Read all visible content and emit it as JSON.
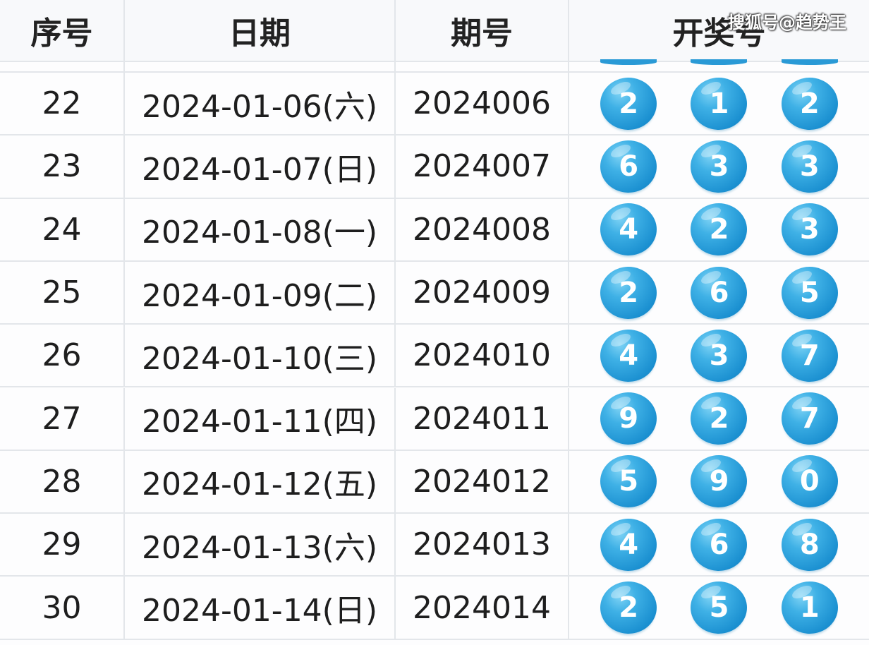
{
  "watermark": "搜狐号@趋势王",
  "headers": {
    "index": "序号",
    "date": "日期",
    "issue": "期号",
    "numbers": "开奖号"
  },
  "colors": {
    "ball": "#1a8fd0",
    "grid": "#e3e6ea"
  },
  "rows": [
    {
      "index": "22",
      "date": "2024-01-06(六)",
      "issue": "2024006",
      "numbers": [
        "2",
        "1",
        "2"
      ]
    },
    {
      "index": "23",
      "date": "2024-01-07(日)",
      "issue": "2024007",
      "numbers": [
        "6",
        "3",
        "3"
      ]
    },
    {
      "index": "24",
      "date": "2024-01-08(一)",
      "issue": "2024008",
      "numbers": [
        "4",
        "2",
        "3"
      ]
    },
    {
      "index": "25",
      "date": "2024-01-09(二)",
      "issue": "2024009",
      "numbers": [
        "2",
        "6",
        "5"
      ]
    },
    {
      "index": "26",
      "date": "2024-01-10(三)",
      "issue": "2024010",
      "numbers": [
        "4",
        "3",
        "7"
      ]
    },
    {
      "index": "27",
      "date": "2024-01-11(四)",
      "issue": "2024011",
      "numbers": [
        "9",
        "2",
        "7"
      ]
    },
    {
      "index": "28",
      "date": "2024-01-12(五)",
      "issue": "2024012",
      "numbers": [
        "5",
        "9",
        "0"
      ]
    },
    {
      "index": "29",
      "date": "2024-01-13(六)",
      "issue": "2024013",
      "numbers": [
        "4",
        "6",
        "8"
      ]
    },
    {
      "index": "30",
      "date": "2024-01-14(日)",
      "issue": "2024014",
      "numbers": [
        "2",
        "5",
        "1"
      ]
    }
  ]
}
